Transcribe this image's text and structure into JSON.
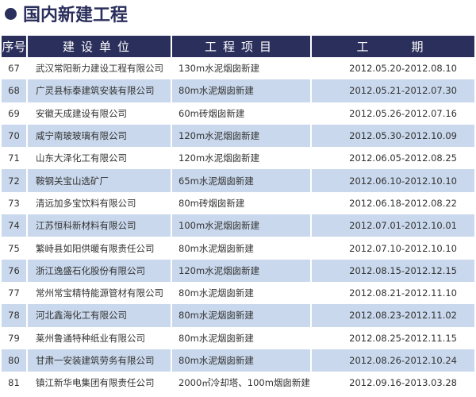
{
  "title": "国内新建工程",
  "header": [
    "序号",
    "建设单位",
    "工程项目",
    "工　　期"
  ],
  "rows": [
    [
      "67",
      "武汉常阳新力建设工程有限公司",
      "130m水泥烟囱新建",
      "2012.05.20-2012.08.10"
    ],
    [
      "68",
      "广灵县标泰建筑安装有限公司",
      "80m水泥烟囱新建",
      "2012.05.21-2012.07.30"
    ],
    [
      "69",
      "安徽天成建设有限公司",
      "60m砖烟囱新建",
      "2012.05.26-2012.07.16"
    ],
    [
      "70",
      "咸宁南玻玻璃有限公司",
      "120m水泥烟囱新建",
      "2012.05.30-2012.10.09"
    ],
    [
      "71",
      "山东大泽化工有限公司",
      "120m水泥烟囱新建",
      "2012.06.05-2012.08.25"
    ],
    [
      "72",
      "鞍钢关宝山选矿厂",
      "65m水泥烟囱新建",
      "2012.06.10-2012.10.10"
    ],
    [
      "73",
      "清远加多宝饮料有限公司",
      "80m砖烟囱新建",
      "2012.06.18-2012.08.22"
    ],
    [
      "74",
      "江苏恒科新材料有限公司",
      "100m水泥烟囱新建",
      "2012.07.01-2012.10.01"
    ],
    [
      "75",
      "繁峙县如阳供暖有限责任公司",
      "80m水泥烟囱新建",
      "2012.07.10-2012.10.10"
    ],
    [
      "76",
      "浙江逸盛石化股份有限公司",
      "120m水泥烟囱新建",
      "2012.08.15-2012.12.15"
    ],
    [
      "77",
      "常州常宝精特能源管材有限公司",
      "80m水泥烟囱新建",
      "2012.08.21-2012.11.10"
    ],
    [
      "78",
      "河北鑫海化工有限公司",
      "80m水泥烟囱新建",
      "2012.08.23-2012.11.02"
    ],
    [
      "79",
      "莱州鲁通特种纸业有限公司",
      "80m水泥烟囱新建",
      "2012.08.25-2012.11.15"
    ],
    [
      "80",
      "甘肃一安装建筑劳务有限公司",
      "80m水泥烟囱新建",
      "2012.08.26-2012.10.24"
    ],
    [
      "81",
      "镇江新华电集团有限责任公司",
      "2000㎡冷却塔、100m烟囱新建",
      "2012.09.16-2013.03.28"
    ]
  ],
  "colors": {
    "header_bg": "#2b2f5c",
    "alt_row_bg": "#c9d8ec"
  }
}
